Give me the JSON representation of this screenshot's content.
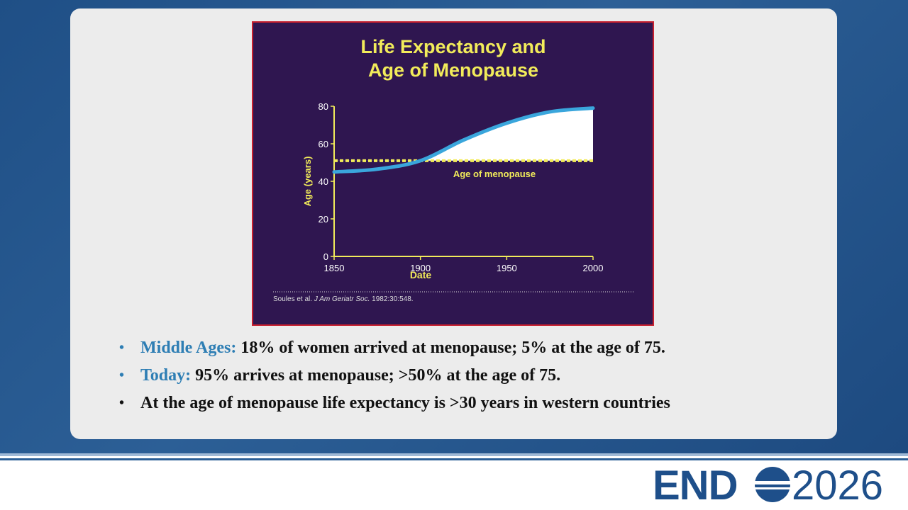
{
  "chart_data": {
    "type": "line",
    "title": [
      "Life Expectancy and",
      "Age of Menopause"
    ],
    "x_label": "Date",
    "y_label": "Age (years)",
    "x": [
      1850,
      1875,
      1900,
      1925,
      1950,
      1975,
      2000
    ],
    "series": [
      {
        "color": "#3aa6dc",
        "values": [
          45,
          46.5,
          51,
          62,
          71,
          77,
          79
        ]
      },
      {
        "name": "Age of menopause",
        "color": "#f2ec5a",
        "dashed": true,
        "values": [
          51,
          51,
          51,
          51,
          51,
          51,
          51
        ]
      }
    ],
    "xlim": [
      1850,
      2000
    ],
    "xticks": [
      1850,
      1900,
      1950,
      2000
    ],
    "ylim": [
      0,
      80
    ],
    "yticks": [
      0,
      20,
      40,
      60,
      80
    ],
    "fill_between": true,
    "source": {
      "authors": "Soules et al.",
      "journal": "J Am Geriatr Soc.",
      "ref": "1982:30:548."
    }
  },
  "bullets": [
    {
      "label": "Middle Ages:",
      "text": "18% of women arrived at menopause; 5% at the age of 75."
    },
    {
      "label": "Today:",
      "text": "95% arrives at menopause; >50% at the age of 75."
    },
    {
      "text": "At the age of menopause life expectancy is >30 years in western countries"
    }
  ],
  "logo": {
    "left": "END",
    "right": "2026"
  }
}
